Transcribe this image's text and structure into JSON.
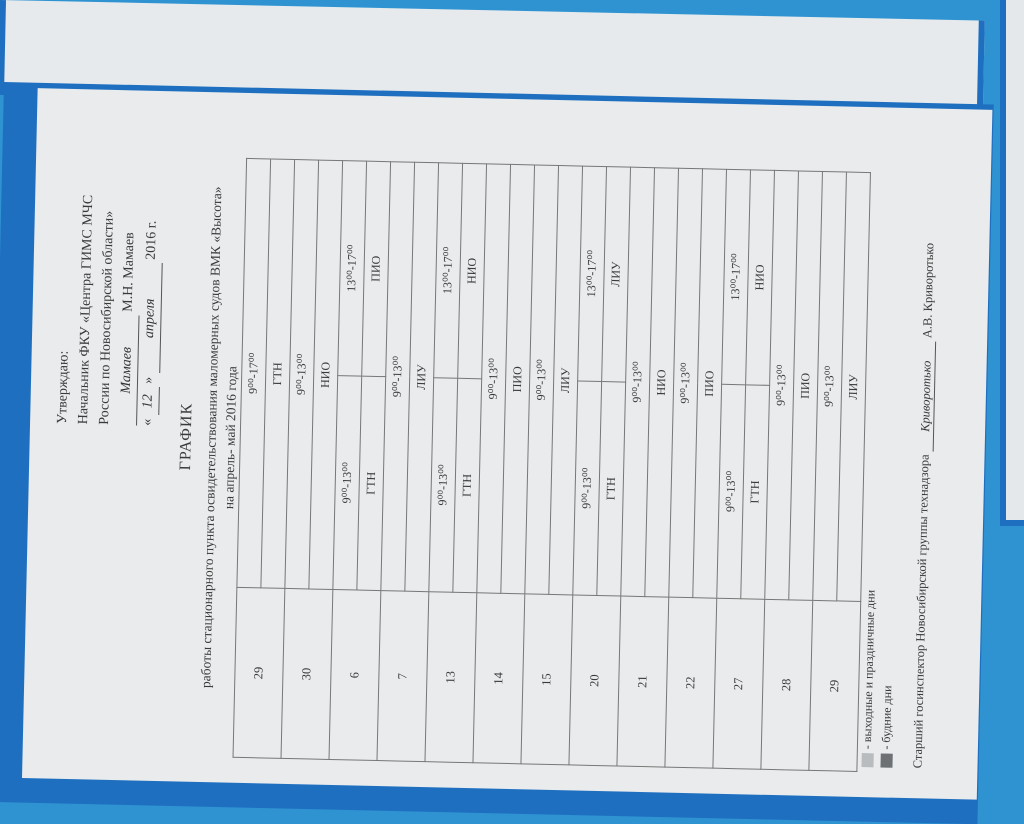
{
  "approval": {
    "line1": "Утверждаю:",
    "line2": "Начальник ФКУ «Центра ГИМС МЧС",
    "line3": "России по Новосибирской области»",
    "signature": "Мамаев",
    "signer": "М.Н. Мамаев",
    "date_day": "12",
    "date_month": "апреля",
    "date_year": "2016 г."
  },
  "title": "ГРАФИК",
  "subtitle1": "работы стационарного пункта освидетельствования маломерных судов ВМК «Высота»",
  "subtitle2": "на апрель- май 2016 года",
  "rows": [
    {
      "date": "29",
      "single": {
        "time": "9⁰⁰-17⁰⁰",
        "code": "ГТН"
      }
    },
    {
      "date": "30",
      "single": {
        "time": "9⁰⁰-13⁰⁰",
        "code": "НИО"
      }
    },
    {
      "date": "6",
      "am": {
        "time": "9⁰⁰-13⁰⁰",
        "code": "ГТН"
      },
      "pm": {
        "time": "13⁰⁰-17⁰⁰",
        "code": "ПИО"
      }
    },
    {
      "date": "7",
      "single": {
        "time": "9⁰⁰-13⁰⁰",
        "code": "ЛИУ"
      }
    },
    {
      "date": "13",
      "am": {
        "time": "9⁰⁰-13⁰⁰",
        "code": "ГТН"
      },
      "pm": {
        "time": "13⁰⁰-17⁰⁰",
        "code": "НИО"
      }
    },
    {
      "date": "14",
      "single": {
        "time": "9⁰⁰-13⁰⁰",
        "code": "ПИО"
      }
    },
    {
      "date": "15",
      "single": {
        "time": "9⁰⁰-13⁰⁰",
        "code": "ЛИУ"
      }
    },
    {
      "date": "20",
      "am": {
        "time": "9⁰⁰-13⁰⁰",
        "code": "ГТН"
      },
      "pm": {
        "time": "13⁰⁰-17⁰⁰",
        "code": "ЛИУ"
      }
    },
    {
      "date": "21",
      "single": {
        "time": "9⁰⁰-13⁰⁰",
        "code": "НИО"
      }
    },
    {
      "date": "22",
      "single": {
        "time": "9⁰⁰-13⁰⁰",
        "code": "ПИО"
      }
    },
    {
      "date": "27",
      "am": {
        "time": "9⁰⁰-13⁰⁰",
        "code": "ГТН"
      },
      "pm": {
        "time": "13⁰⁰-17⁰⁰",
        "code": "НИО"
      }
    },
    {
      "date": "28",
      "single": {
        "time": "9⁰⁰-13⁰⁰",
        "code": "ПИО"
      }
    },
    {
      "date": "29",
      "single": {
        "time": "9⁰⁰-13⁰⁰",
        "code": "ЛИУ"
      }
    }
  ],
  "legend": [
    {
      "label": "- выходные и праздничные дни",
      "color": "#b9bcbe"
    },
    {
      "label": "- будние дни",
      "color": "#6e7174"
    }
  ],
  "footer": {
    "position": "Старший госинспектор Новосибирской группы технадзора",
    "signature": "Криворотько",
    "name": "А.В. Криворотько"
  },
  "colors": {
    "board": "#2f93d2",
    "frame": "#1f6fc0",
    "paper": "#e9ebec"
  }
}
